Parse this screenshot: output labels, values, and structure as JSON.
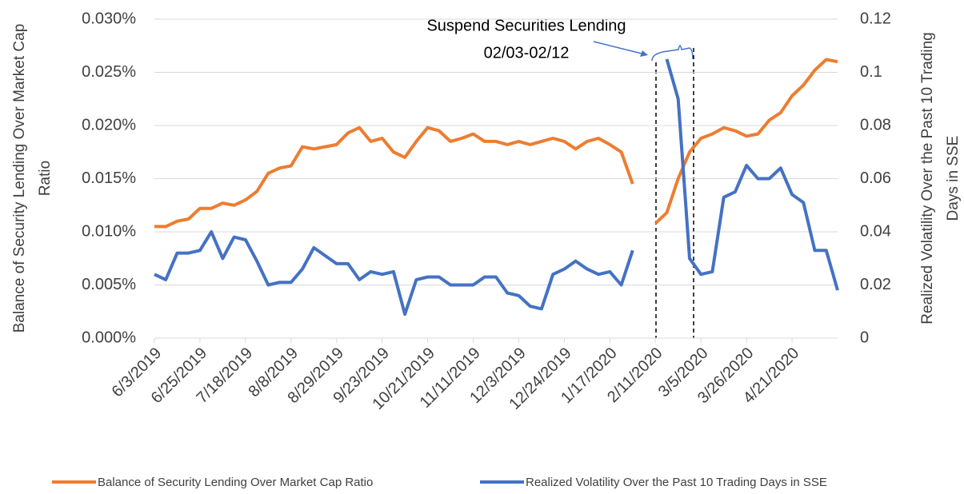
{
  "chart_data": {
    "type": "line",
    "y_label": [
      "Balance of Security Lending Over Market Cap",
      "Ratio"
    ],
    "y2_label": [
      "Realized Volatility Over the Past 10 Trading",
      "Days in SSE"
    ],
    "annotation": [
      "Suspend Securities Lending",
      "02/03-02/12"
    ],
    "categories": [
      "6/3/2019",
      null,
      null,
      null,
      "6/25/2019",
      null,
      null,
      null,
      "7/18/2019",
      null,
      null,
      null,
      "8/8/2019",
      null,
      null,
      null,
      "8/29/2019",
      null,
      null,
      null,
      "9/23/2019",
      null,
      null,
      null,
      "10/21/2019",
      null,
      null,
      null,
      "11/11/2019",
      null,
      null,
      null,
      "12/3/2019",
      null,
      null,
      null,
      "12/24/2019",
      null,
      null,
      null,
      "1/17/2020",
      null,
      null,
      null,
      "2/11/2020",
      null,
      null,
      null,
      "3/5/2020",
      null,
      null,
      null,
      "3/26/2020",
      null,
      null,
      null,
      "4/21/2020",
      null,
      null,
      null,
      null
    ],
    "series": [
      {
        "name": "Balance of Security Lending Over Market Cap Ratio",
        "color": "#ed7d31",
        "axis": "y",
        "values": [
          0.0105,
          0.0105,
          0.011,
          0.0112,
          0.0122,
          0.0122,
          0.0127,
          0.0125,
          0.013,
          0.0138,
          0.0155,
          0.016,
          0.0162,
          0.018,
          0.0178,
          0.018,
          0.0182,
          0.0193,
          0.0198,
          0.0185,
          0.0188,
          0.0175,
          0.017,
          0.0185,
          0.0198,
          0.0195,
          0.0185,
          0.0188,
          0.0192,
          0.0185,
          0.0185,
          0.0182,
          0.0185,
          0.0182,
          0.0185,
          0.0188,
          0.0185,
          0.0178,
          0.0185,
          0.0188,
          0.0182,
          0.0175,
          0.0145,
          null,
          0.0108,
          0.0118,
          0.015,
          0.0175,
          0.0188,
          0.0192,
          0.0198,
          0.0195,
          0.019,
          0.0192,
          0.0205,
          0.0212,
          0.0228,
          0.0238,
          0.0252,
          0.0262,
          0.026
        ]
      },
      {
        "name": "Realized Volatility Over the Past 10 Trading Days in SSE",
        "color": "#4472c4",
        "axis": "y2",
        "values": [
          0.024,
          0.022,
          0.032,
          0.032,
          0.033,
          0.04,
          0.03,
          0.038,
          0.037,
          0.029,
          0.02,
          0.021,
          0.021,
          0.026,
          0.034,
          0.031,
          0.028,
          0.028,
          0.022,
          0.025,
          0.024,
          0.025,
          0.009,
          0.022,
          0.023,
          0.023,
          0.02,
          0.02,
          0.02,
          0.023,
          0.023,
          0.017,
          0.016,
          0.012,
          0.011,
          0.024,
          0.026,
          0.029,
          0.026,
          0.024,
          0.025,
          0.02,
          0.033,
          null,
          null,
          0.105,
          0.09,
          0.03,
          0.024,
          0.025,
          0.053,
          0.055,
          0.065,
          0.06,
          0.06,
          0.064,
          0.054,
          0.051,
          0.033,
          0.033,
          0.018
        ]
      }
    ],
    "ylim": [
      0,
      0.03
    ],
    "yticks": [
      {
        "value": 0,
        "label": "0.000%"
      },
      {
        "value": 0.005,
        "label": "0.005%"
      },
      {
        "value": 0.01,
        "label": "0.010%"
      },
      {
        "value": 0.015,
        "label": "0.015%"
      },
      {
        "value": 0.02,
        "label": "0.020%"
      },
      {
        "value": 0.025,
        "label": "0.025%"
      },
      {
        "value": 0.03,
        "label": "0.030%"
      }
    ],
    "y2lim": [
      0,
      0.12
    ],
    "y2ticks": [
      0,
      0.02,
      0.04,
      0.06,
      0.08,
      0.1,
      0.12
    ],
    "grid": true,
    "legend": "bottom"
  }
}
